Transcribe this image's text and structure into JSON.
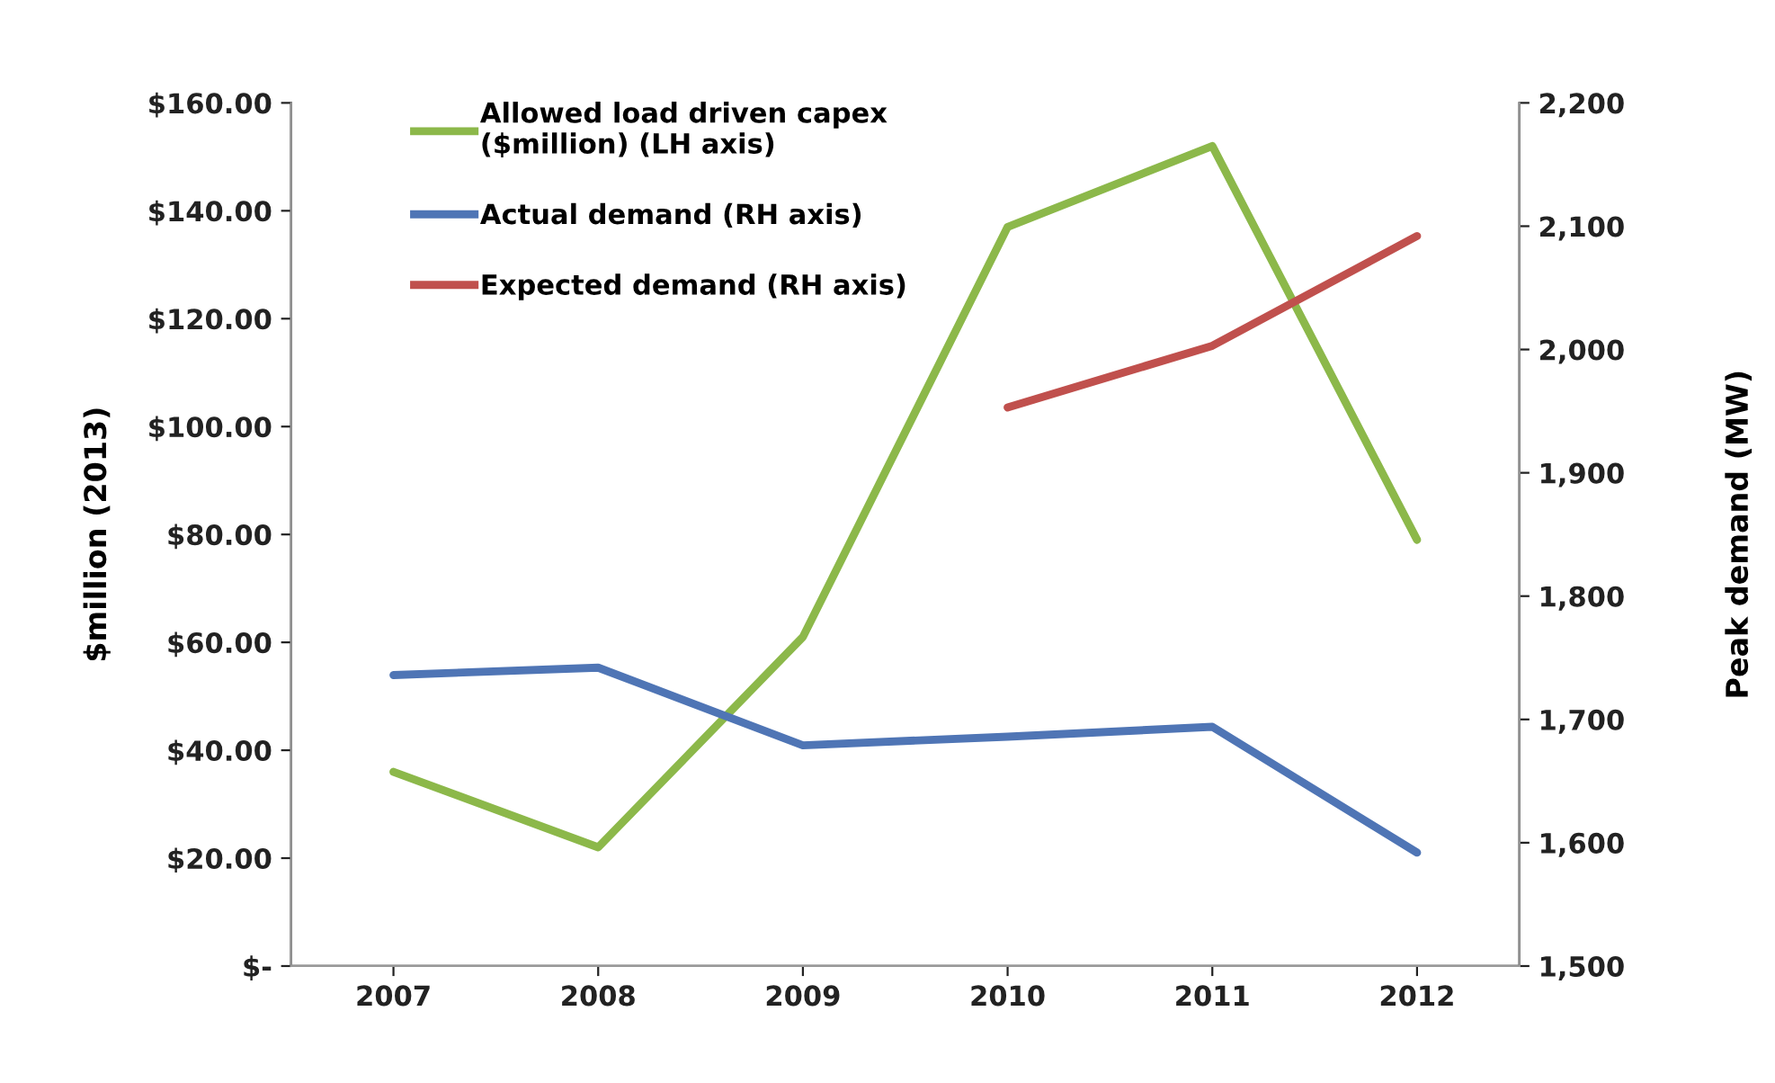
{
  "chart_data": {
    "type": "line",
    "categories": [
      "2007",
      "2008",
      "2009",
      "2010",
      "2011",
      "2012"
    ],
    "series": [
      {
        "name": "Allowed load driven capex\n($million) (LH axis)",
        "color": "#8cb84a",
        "values": [
          36,
          22,
          61,
          137,
          152,
          79
        ]
      },
      {
        "name": "Actual demand (RH axis)",
        "color": "#4f75b5",
        "axis": "y2",
        "values": [
          1736,
          1742,
          1679,
          1686,
          1694,
          1592
        ]
      },
      {
        "name": "Expected demand (RH axis)",
        "color": "#c0504d",
        "axis": "y2",
        "values": [
          null,
          null,
          null,
          1953,
          2003,
          2092
        ]
      }
    ],
    "ylabel": "$million (2013)",
    "y2label": "Peak demand (MW)",
    "ylim": [
      0,
      160
    ],
    "yticks": [
      {
        "value": 0,
        "label": "$-"
      },
      {
        "value": 20,
        "label": "$20.00"
      },
      {
        "value": 40,
        "label": "$40.00"
      },
      {
        "value": 60,
        "label": "$60.00"
      },
      {
        "value": 80,
        "label": "$80.00"
      },
      {
        "value": 100,
        "label": "$100.00"
      },
      {
        "value": 120,
        "label": "$120.00"
      },
      {
        "value": 140,
        "label": "$140.00"
      },
      {
        "value": 160,
        "label": "$160.00"
      }
    ],
    "y2lim": [
      1500,
      2200
    ],
    "y2ticks": [
      {
        "value": 1500,
        "label": "1,500"
      },
      {
        "value": 1600,
        "label": "1,600"
      },
      {
        "value": 1700,
        "label": "1,700"
      },
      {
        "value": 1800,
        "label": "1,800"
      },
      {
        "value": 1900,
        "label": "1,900"
      },
      {
        "value": 2000,
        "label": "2,000"
      },
      {
        "value": 2100,
        "label": "2,100"
      },
      {
        "value": 2200,
        "label": "2,200"
      }
    ],
    "grid": false,
    "legend": "top left",
    "marker": "none",
    "line_style": "solid"
  }
}
